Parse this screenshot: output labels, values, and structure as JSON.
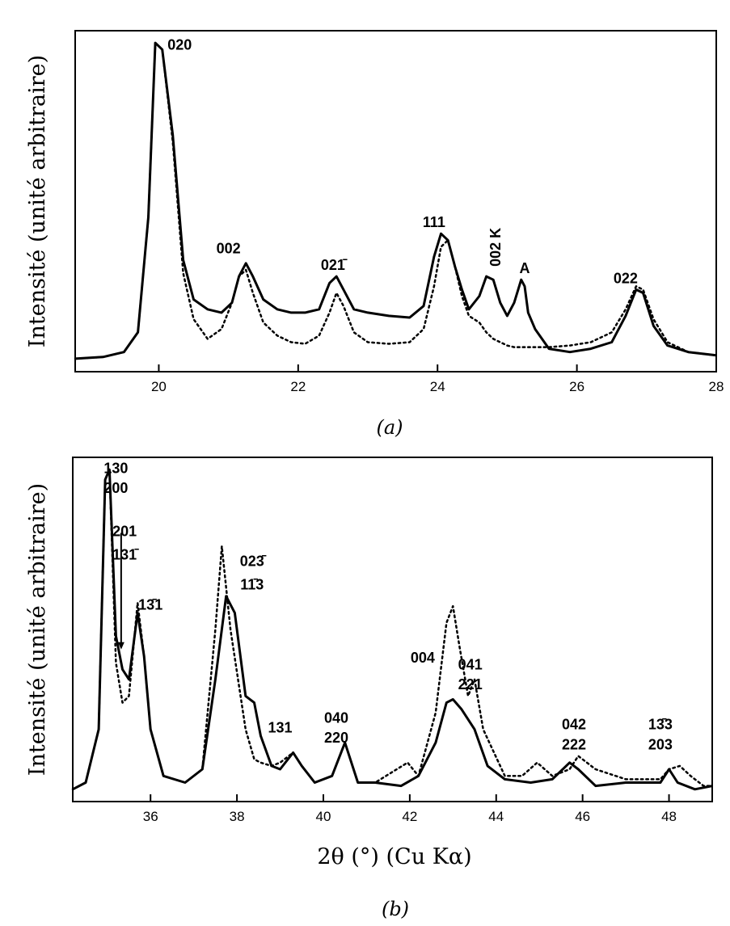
{
  "chart_data": [
    {
      "type": "line",
      "panel_caption": "(a)",
      "ylabel": "Intensité (unité arbitraire)",
      "xlabel": "",
      "xlim": [
        18.8,
        28
      ],
      "ylim": [
        0,
        100
      ],
      "x_ticks": [
        "20",
        "22",
        "24",
        "26",
        "28"
      ],
      "x_tick_values": [
        20,
        22,
        24,
        26,
        28
      ],
      "series": [
        {
          "style": "solid",
          "x": [
            18.8,
            19.2,
            19.5,
            19.7,
            19.85,
            19.95,
            20.05,
            20.2,
            20.35,
            20.5,
            20.7,
            20.9,
            21.05,
            21.15,
            21.25,
            21.35,
            21.5,
            21.7,
            21.9,
            22.1,
            22.3,
            22.45,
            22.55,
            22.65,
            22.8,
            23.0,
            23.3,
            23.6,
            23.8,
            23.95,
            24.05,
            24.15,
            24.25,
            24.35,
            24.45,
            24.6,
            24.7,
            24.8,
            24.9,
            25.0,
            25.1,
            25.2,
            25.25,
            25.3,
            25.4,
            25.6,
            25.9,
            26.2,
            26.5,
            26.7,
            26.85,
            26.95,
            27.1,
            27.3,
            27.6,
            28.0
          ],
          "y": [
            2,
            2.5,
            4,
            10,
            45,
            98,
            96,
            70,
            32,
            20,
            17,
            16,
            19,
            27,
            31,
            27,
            20,
            17,
            16,
            16,
            17,
            25,
            27,
            23,
            17,
            16,
            15,
            14.5,
            18,
            33,
            40,
            38,
            30,
            23,
            17,
            21,
            27,
            26,
            19,
            15,
            19,
            26,
            24,
            16,
            11,
            5,
            4,
            5,
            7,
            15,
            23,
            22,
            12,
            6,
            4,
            3
          ]
        },
        {
          "style": "dotted",
          "x": [
            18.8,
            19.2,
            19.5,
            19.7,
            19.85,
            19.95,
            20.05,
            20.2,
            20.35,
            20.5,
            20.7,
            20.9,
            21.05,
            21.15,
            21.25,
            21.35,
            21.5,
            21.7,
            21.9,
            22.1,
            22.3,
            22.45,
            22.55,
            22.65,
            22.8,
            23.0,
            23.3,
            23.6,
            23.8,
            23.95,
            24.05,
            24.15,
            24.25,
            24.35,
            24.45,
            24.6,
            24.7,
            24.8,
            24.9,
            25.0,
            25.1,
            25.2,
            25.25,
            25.3,
            25.4,
            25.6,
            25.9,
            26.2,
            26.5,
            26.7,
            26.85,
            26.95,
            27.1,
            27.3,
            27.6,
            28.0
          ],
          "y": [
            2,
            2.5,
            4,
            10,
            45,
            98,
            96,
            68,
            28,
            14,
            8,
            11,
            19,
            27,
            29,
            22,
            13,
            9,
            7,
            6.5,
            9,
            16,
            22,
            18,
            10,
            7,
            6.5,
            7,
            11,
            24,
            36,
            38,
            30,
            21,
            15,
            13,
            10,
            8,
            7,
            6,
            5.5,
            5.5,
            5.5,
            5.5,
            5.5,
            5.5,
            6,
            7,
            10,
            17,
            24,
            23,
            14,
            7,
            4,
            3
          ]
        }
      ],
      "peak_labels": [
        {
          "text": "020",
          "x": 20.3,
          "y": 96
        },
        {
          "text": "002",
          "x": 21.0,
          "y": 34
        },
        {
          "text": "021̄",
          "x": 22.5,
          "y": 29
        },
        {
          "text": "111",
          "x": 23.95,
          "y": 42
        },
        {
          "text": "002 K",
          "x": 24.9,
          "y": 30
        },
        {
          "text": "A",
          "x": 25.25,
          "y": 28
        },
        {
          "text": "022",
          "x": 26.7,
          "y": 25
        }
      ]
    },
    {
      "type": "line",
      "panel_caption": "(b)",
      "ylabel": "Intensité (unité arbitraire)",
      "xlabel": "2θ (°) (Cu Kα)",
      "xlim": [
        34.2,
        49
      ],
      "ylim": [
        0,
        100
      ],
      "x_ticks": [
        "36",
        "38",
        "40",
        "42",
        "44",
        "46",
        "48"
      ],
      "x_tick_values": [
        36,
        38,
        40,
        42,
        44,
        46,
        48
      ],
      "series": [
        {
          "style": "solid",
          "x": [
            34.2,
            34.5,
            34.8,
            34.95,
            35.05,
            35.2,
            35.35,
            35.5,
            35.7,
            35.85,
            36.0,
            36.3,
            36.8,
            37.2,
            37.5,
            37.75,
            37.95,
            38.2,
            38.4,
            38.55,
            38.8,
            39.0,
            39.3,
            39.5,
            39.8,
            40.2,
            40.5,
            40.65,
            40.8,
            41.2,
            41.8,
            42.2,
            42.6,
            42.85,
            43.0,
            43.2,
            43.5,
            43.8,
            44.2,
            44.8,
            45.3,
            45.7,
            45.9,
            46.3,
            47.0,
            47.8,
            48.0,
            48.2,
            48.6,
            49.0
          ],
          "y": [
            2,
            4,
            20,
            95,
            98,
            48,
            38,
            35,
            55,
            42,
            20,
            6,
            4,
            8,
            35,
            60,
            55,
            30,
            28,
            18,
            9,
            8,
            13,
            9,
            4,
            6,
            16,
            10,
            4,
            4,
            3,
            6,
            16,
            28,
            29,
            26,
            20,
            9,
            5,
            4,
            5,
            10,
            8,
            3,
            4,
            4,
            8,
            4,
            2,
            3
          ]
        },
        {
          "style": "dotted",
          "x": [
            34.2,
            34.5,
            34.8,
            34.95,
            35.05,
            35.2,
            35.35,
            35.5,
            35.7,
            35.85,
            36.0,
            36.3,
            36.8,
            37.2,
            37.5,
            37.65,
            37.85,
            38.2,
            38.4,
            38.55,
            38.8,
            39.0,
            39.3,
            39.5,
            39.8,
            40.2,
            40.5,
            40.65,
            40.8,
            41.2,
            41.7,
            41.95,
            42.2,
            42.6,
            42.85,
            43.0,
            43.15,
            43.35,
            43.5,
            43.7,
            44.2,
            44.6,
            44.95,
            45.3,
            45.7,
            45.9,
            46.3,
            47.0,
            47.8,
            48.0,
            48.25,
            48.5,
            48.8,
            49.0
          ],
          "y": [
            2,
            4,
            20,
            95,
            98,
            40,
            28,
            30,
            58,
            42,
            20,
            6,
            4,
            8,
            50,
            75,
            50,
            20,
            11,
            10,
            9,
            10,
            13,
            9,
            4,
            6,
            16,
            10,
            4,
            4,
            8,
            10,
            6,
            25,
            52,
            57,
            45,
            30,
            35,
            20,
            6,
            6,
            10,
            6,
            8,
            12,
            8,
            5,
            5,
            8,
            9,
            6,
            3,
            3
          ]
        }
      ],
      "peak_labels": [
        {
          "text": "130",
          "x": 35.2,
          "y": 97
        },
        {
          "text": "200",
          "x": 35.2,
          "y": 91
        },
        {
          "text": "201",
          "x": 35.4,
          "y": 78
        },
        {
          "text": "131̄",
          "x": 35.4,
          "y": 71
        },
        {
          "text": "13̄1",
          "x": 36.0,
          "y": 56
        },
        {
          "text": "023̄",
          "x": 38.35,
          "y": 69
        },
        {
          "text": "11̄3",
          "x": 38.35,
          "y": 62
        },
        {
          "text": "131",
          "x": 39.0,
          "y": 19
        },
        {
          "text": "040",
          "x": 40.3,
          "y": 22
        },
        {
          "text": "220",
          "x": 40.3,
          "y": 16
        },
        {
          "text": "004",
          "x": 42.3,
          "y": 40
        },
        {
          "text": "041",
          "x": 43.4,
          "y": 38
        },
        {
          "text": "221",
          "x": 43.4,
          "y": 32
        },
        {
          "text": "042",
          "x": 45.8,
          "y": 20
        },
        {
          "text": "222",
          "x": 45.8,
          "y": 14
        },
        {
          "text": "13̄3",
          "x": 47.8,
          "y": 20
        },
        {
          "text": "203",
          "x": 47.8,
          "y": 14
        }
      ]
    }
  ]
}
